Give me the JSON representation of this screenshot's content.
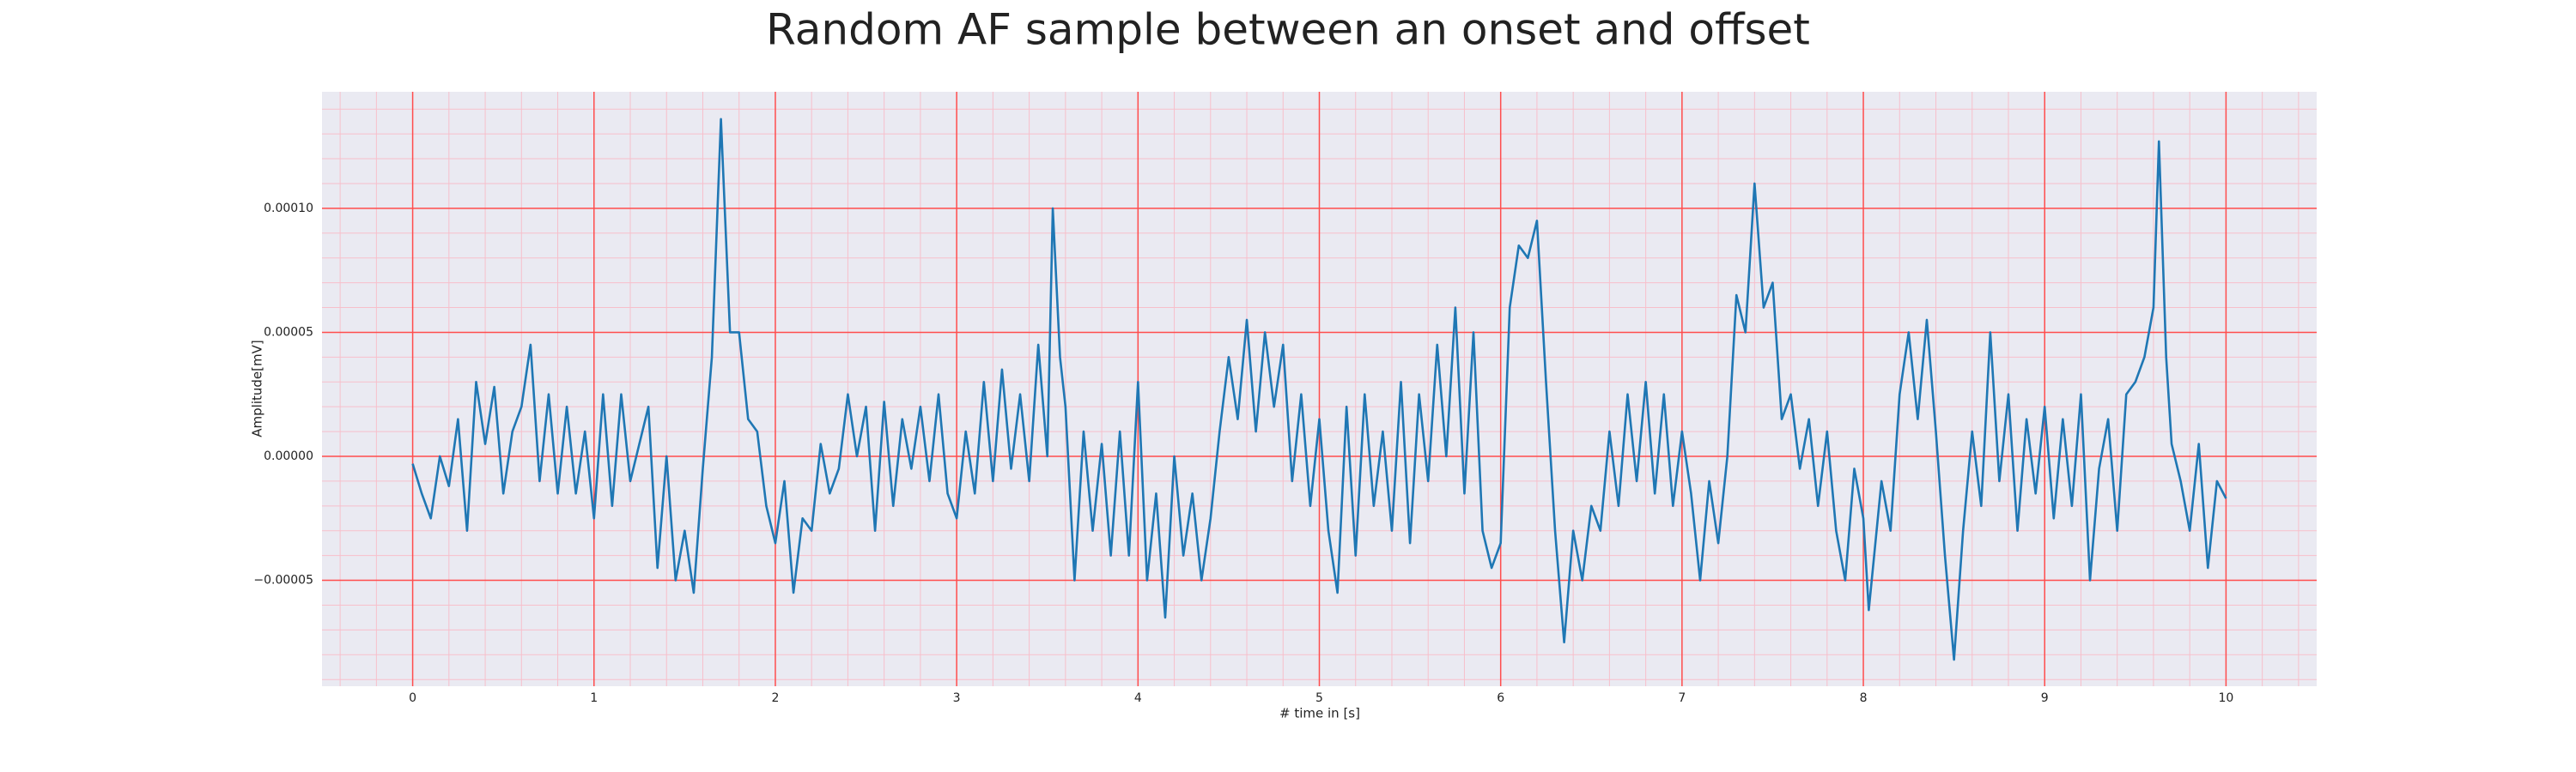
{
  "chart_data": {
    "type": "line",
    "title": "Random AF sample between an onset and offset",
    "xlabel": "# time in [s]",
    "ylabel": "Amplitude[mV]",
    "xlim": [
      -0.5,
      10.5
    ],
    "ylim": [
      -9.27e-05,
      0.000147
    ],
    "xticks": [
      0,
      1,
      2,
      3,
      4,
      5,
      6,
      7,
      8,
      9,
      10
    ],
    "yticks": [
      {
        "value": -5e-05,
        "label": "−0.00005"
      },
      {
        "value": 0,
        "label": "0.00000"
      },
      {
        "value": 5e-05,
        "label": "0.00005"
      },
      {
        "value": 0.0001,
        "label": "0.00010"
      }
    ],
    "grid": true,
    "minor_grid": {
      "x_step": 0.2,
      "y_step": 1e-05
    },
    "background": "#eaeaf2",
    "grid_color": "#ff4d4d",
    "minor_grid_color": "#f7bfcb",
    "color": "#1f77b4",
    "x": [
      0,
      0.05,
      0.1,
      0.15,
      0.2,
      0.25,
      0.3,
      0.35,
      0.4,
      0.45,
      0.5,
      0.55,
      0.6,
      0.65,
      0.7,
      0.75,
      0.8,
      0.85,
      0.9,
      0.95,
      1.0,
      1.05,
      1.1,
      1.15,
      1.2,
      1.25,
      1.3,
      1.35,
      1.4,
      1.45,
      1.5,
      1.55,
      1.6,
      1.65,
      1.7,
      1.75,
      1.8,
      1.85,
      1.9,
      1.95,
      2.0,
      2.05,
      2.1,
      2.15,
      2.2,
      2.25,
      2.3,
      2.35,
      2.4,
      2.45,
      2.5,
      2.55,
      2.6,
      2.65,
      2.7,
      2.75,
      2.8,
      2.85,
      2.9,
      2.95,
      3.0,
      3.05,
      3.1,
      3.15,
      3.2,
      3.25,
      3.3,
      3.35,
      3.4,
      3.45,
      3.5,
      3.53,
      3.57,
      3.6,
      3.65,
      3.7,
      3.75,
      3.8,
      3.85,
      3.9,
      3.95,
      4.0,
      4.05,
      4.1,
      4.15,
      4.2,
      4.25,
      4.3,
      4.35,
      4.4,
      4.45,
      4.5,
      4.55,
      4.6,
      4.65,
      4.7,
      4.75,
      4.8,
      4.85,
      4.9,
      4.95,
      5.0,
      5.05,
      5.1,
      5.15,
      5.2,
      5.25,
      5.3,
      5.35,
      5.4,
      5.45,
      5.5,
      5.55,
      5.6,
      5.65,
      5.7,
      5.75,
      5.8,
      5.85,
      5.9,
      5.95,
      6.0,
      6.05,
      6.1,
      6.15,
      6.2,
      6.25,
      6.3,
      6.35,
      6.4,
      6.45,
      6.5,
      6.55,
      6.6,
      6.65,
      6.7,
      6.75,
      6.8,
      6.85,
      6.9,
      6.95,
      7.0,
      7.05,
      7.1,
      7.15,
      7.2,
      7.25,
      7.3,
      7.35,
      7.4,
      7.45,
      7.5,
      7.55,
      7.6,
      7.65,
      7.7,
      7.75,
      7.8,
      7.85,
      7.9,
      7.95,
      8.0,
      8.03,
      8.1,
      8.15,
      8.2,
      8.25,
      8.3,
      8.35,
      8.4,
      8.45,
      8.5,
      8.55,
      8.6,
      8.65,
      8.7,
      8.75,
      8.8,
      8.85,
      8.9,
      8.95,
      9.0,
      9.05,
      9.1,
      9.15,
      9.2,
      9.25,
      9.3,
      9.35,
      9.4,
      9.45,
      9.5,
      9.55,
      9.6,
      9.63,
      9.67,
      9.7,
      9.75,
      9.8,
      9.85,
      9.9,
      9.95,
      10.0
    ],
    "values": [
      -3e-06,
      -1.5e-05,
      -2.5e-05,
      0,
      -1.2e-05,
      1.5e-05,
      -3e-05,
      3e-05,
      5e-06,
      2.8e-05,
      -1.5e-05,
      1e-05,
      2e-05,
      4.5e-05,
      -1e-05,
      2.5e-05,
      -1.5e-05,
      2e-05,
      -1.5e-05,
      1e-05,
      -2.5e-05,
      2.5e-05,
      -2e-05,
      2.5e-05,
      -1e-05,
      5e-06,
      2e-05,
      -4.5e-05,
      0,
      -5e-05,
      -3e-05,
      -5.5e-05,
      -5e-06,
      4e-05,
      0.000136,
      5e-05,
      5e-05,
      1.5e-05,
      1e-05,
      -2e-05,
      -3.5e-05,
      -1e-05,
      -5.5e-05,
      -2.5e-05,
      -3e-05,
      5e-06,
      -1.5e-05,
      -5e-06,
      2.5e-05,
      0,
      2e-05,
      -3e-05,
      2.2e-05,
      -2e-05,
      1.5e-05,
      -5e-06,
      2e-05,
      -1e-05,
      2.5e-05,
      -1.5e-05,
      -2.5e-05,
      1e-05,
      -1.5e-05,
      3e-05,
      -1e-05,
      3.5e-05,
      -5e-06,
      2.5e-05,
      -1e-05,
      4.5e-05,
      0,
      0.0001,
      4e-05,
      2e-05,
      -5e-05,
      1e-05,
      -3e-05,
      5e-06,
      -4e-05,
      1e-05,
      -4e-05,
      3e-05,
      -5e-05,
      -1.5e-05,
      -6.5e-05,
      0,
      -4e-05,
      -1.5e-05,
      -5e-05,
      -2.5e-05,
      1e-05,
      4e-05,
      1.5e-05,
      5.5e-05,
      1e-05,
      5e-05,
      2e-05,
      4.5e-05,
      -1e-05,
      2.5e-05,
      -2e-05,
      1.5e-05,
      -3e-05,
      -5.5e-05,
      2e-05,
      -4e-05,
      2.5e-05,
      -2e-05,
      1e-05,
      -3e-05,
      3e-05,
      -3.5e-05,
      2.5e-05,
      -1e-05,
      4.5e-05,
      0,
      6e-05,
      -1.5e-05,
      5e-05,
      -3e-05,
      -4.5e-05,
      -3.5e-05,
      6e-05,
      8.5e-05,
      8e-05,
      9.5e-05,
      3e-05,
      -3e-05,
      -7.5e-05,
      -3e-05,
      -5e-05,
      -2e-05,
      -3e-05,
      1e-05,
      -2e-05,
      2.5e-05,
      -1e-05,
      3e-05,
      -1.5e-05,
      2.5e-05,
      -2e-05,
      1e-05,
      -1.5e-05,
      -5e-05,
      -1e-05,
      -3.5e-05,
      0,
      6.5e-05,
      5e-05,
      0.00011,
      6e-05,
      7e-05,
      1.5e-05,
      2.5e-05,
      -5e-06,
      1.5e-05,
      -2e-05,
      1e-05,
      -3e-05,
      -5e-05,
      -5e-06,
      -2.5e-05,
      -6.2e-05,
      -1e-05,
      -3e-05,
      2.5e-05,
      5e-05,
      1.5e-05,
      5.5e-05,
      1e-05,
      -4e-05,
      -8.2e-05,
      -3e-05,
      1e-05,
      -2e-05,
      5e-05,
      -1e-05,
      2.5e-05,
      -3e-05,
      1.5e-05,
      -1.5e-05,
      2e-05,
      -2.5e-05,
      1.5e-05,
      -2e-05,
      2.5e-05,
      -5e-05,
      -5e-06,
      1.5e-05,
      -3e-05,
      2.5e-05,
      3e-05,
      4e-05,
      6e-05,
      0.000127,
      4e-05,
      5e-06,
      -1e-05,
      -3e-05,
      5e-06,
      -4.5e-05,
      -1e-05,
      -1.7e-05
    ]
  }
}
